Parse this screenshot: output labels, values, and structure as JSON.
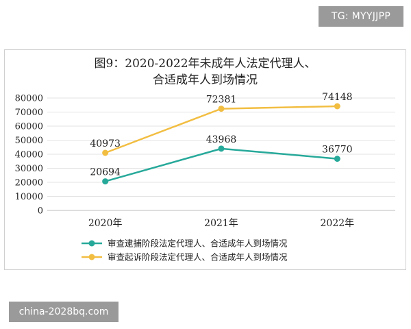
{
  "watermark_top": "TG: MYYJJPP",
  "watermark_bottom": "china-2028bq.com",
  "chart_data": {
    "type": "line",
    "title_line1": "图9：2020-2022年未成年人法定代理人、",
    "title_line2": "合适成年人到场情况",
    "categories": [
      "2020年",
      "2021年",
      "2022年"
    ],
    "ylim": [
      0,
      80000
    ],
    "yticks": [
      0,
      10000,
      20000,
      30000,
      40000,
      50000,
      60000,
      70000,
      80000
    ],
    "grid": true,
    "legend_position": "bottom",
    "series": [
      {
        "name": "审查逮捕阶段法定代理人、合适成年人到场情况",
        "color": "#27a99a",
        "values": [
          20694,
          43968,
          36770
        ]
      },
      {
        "name": "审查起诉阶段法定代理人、合适成年人到场情况",
        "color": "#f2be42",
        "values": [
          40973,
          72381,
          74148
        ]
      }
    ]
  }
}
